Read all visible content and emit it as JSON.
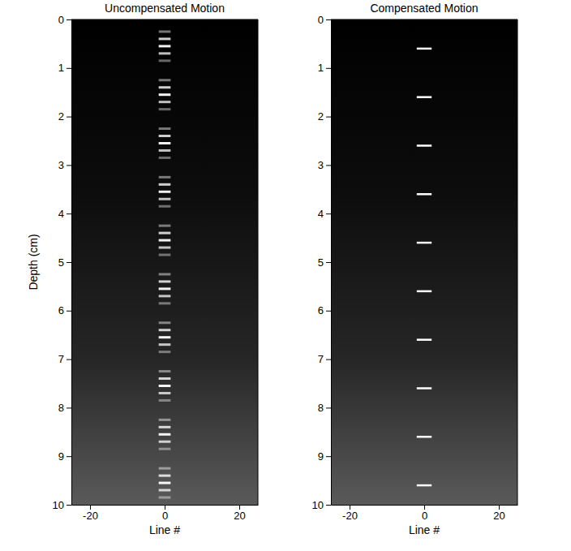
{
  "chart_data": [
    {
      "type": "scatter",
      "title": "Uncompensated Motion",
      "x_label": "Line #",
      "y_label": "Depth (cm)",
      "x": [
        0,
        0,
        0,
        0,
        0,
        0,
        0,
        0,
        0,
        0
      ],
      "y": [
        0.6,
        1.6,
        2.6,
        3.6,
        4.6,
        5.6,
        6.6,
        7.6,
        8.6,
        9.6
      ],
      "marker": "smear",
      "color": "#ffffff",
      "xlim": [
        -25,
        25
      ],
      "xticks": [
        -20,
        0,
        20
      ],
      "ylim": [
        0,
        10
      ],
      "yticks": [
        0,
        1,
        2,
        3,
        4,
        5,
        6,
        7,
        8,
        9,
        10
      ]
    },
    {
      "type": "scatter",
      "title": "Compensated Motion",
      "x_label": "Line #",
      "x": [
        0,
        0,
        0,
        0,
        0,
        0,
        0,
        0,
        0,
        0
      ],
      "y": [
        0.6,
        1.6,
        2.6,
        3.6,
        4.6,
        5.6,
        6.6,
        7.6,
        8.6,
        9.6
      ],
      "marker": "dash",
      "color": "#ffffff",
      "xlim": [
        -25,
        25
      ],
      "xticks": [
        -20,
        0,
        20
      ],
      "ylim": [
        0,
        10
      ],
      "yticks": [
        0,
        1,
        2,
        3,
        4,
        5,
        6,
        7,
        8,
        9,
        10
      ]
    }
  ]
}
